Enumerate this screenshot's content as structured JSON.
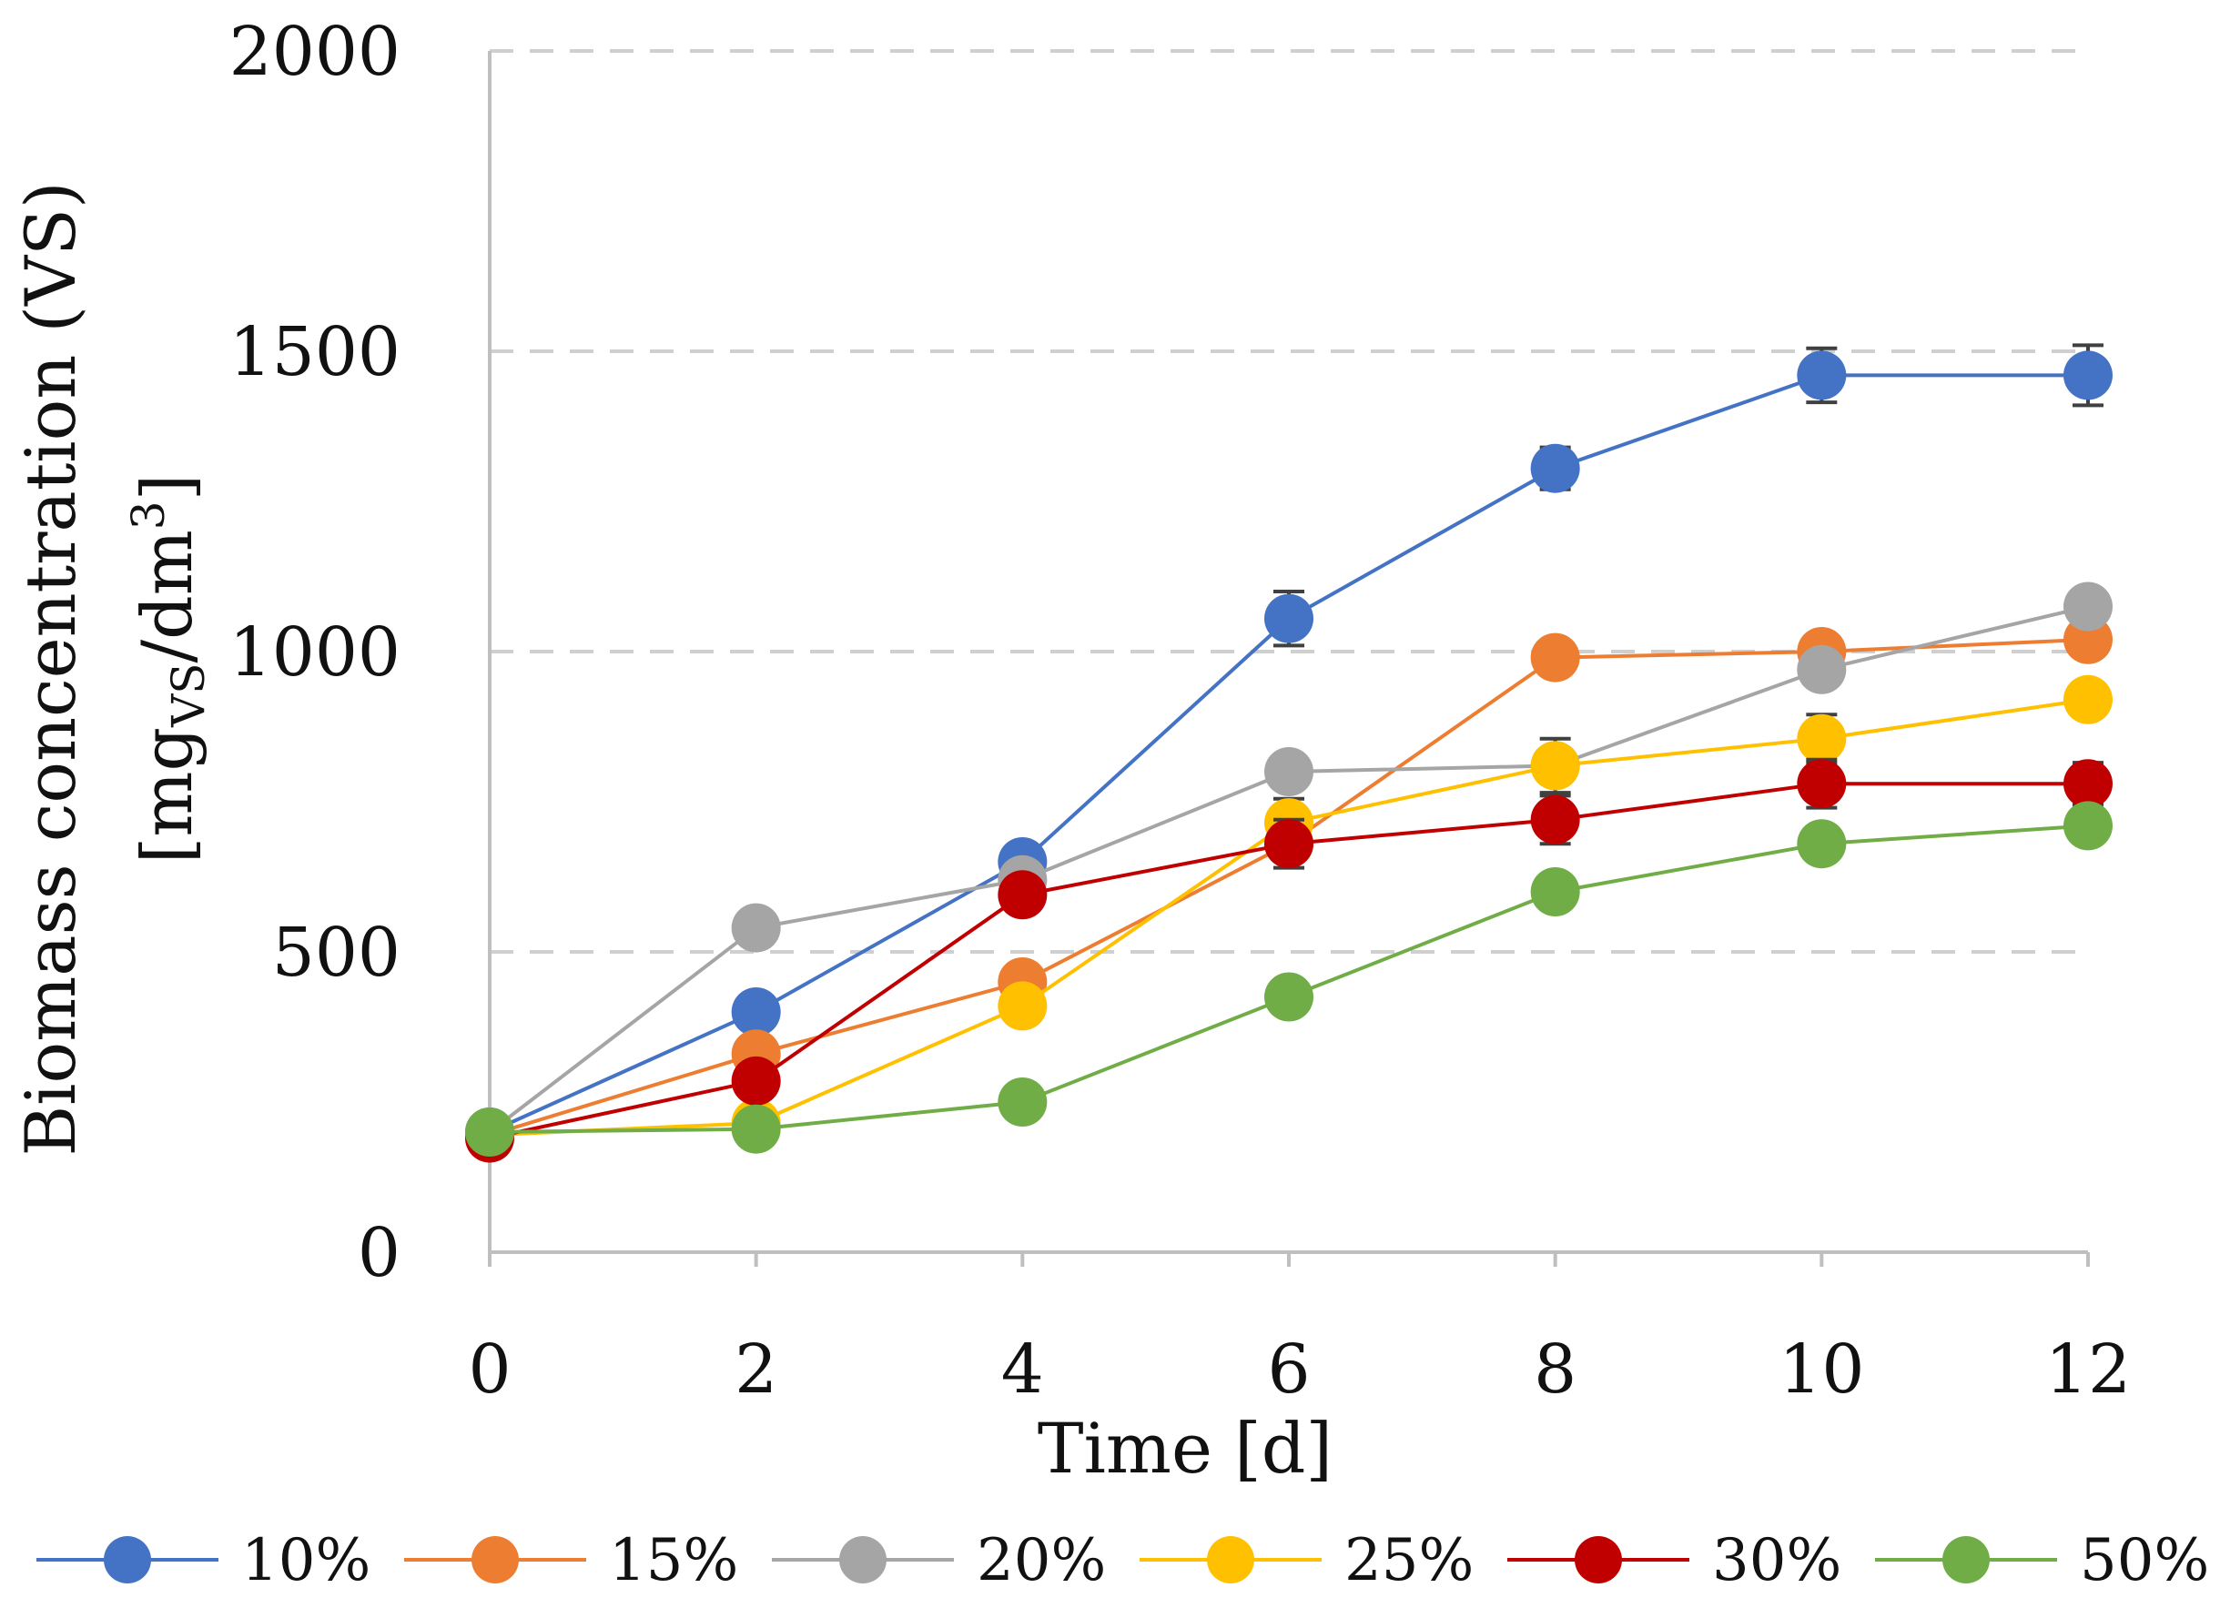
{
  "chart_data": {
    "type": "line",
    "title": "",
    "xlabel": "Time [d]",
    "ylabel": {
      "line1": "Biomass concentration (VS)",
      "line2_prefix": "[mg",
      "line2_sub": "VS",
      "line2_mid": "/dm",
      "line2_sup": "3",
      "line2_suffix": "]"
    },
    "x": [
      0,
      2,
      4,
      6,
      8,
      10,
      12
    ],
    "xticks": [
      "0",
      "2",
      "4",
      "6",
      "8",
      "10",
      "12"
    ],
    "ylim": [
      0,
      2000
    ],
    "yticks": [
      "0",
      "500",
      "1000",
      "1500",
      "2000"
    ],
    "ytick_values": [
      0,
      500,
      1000,
      1500,
      2000
    ],
    "grid": "horizontal-dashed",
    "legend_position": "bottom",
    "series": [
      {
        "name": "10%",
        "color": "#4472C4",
        "values": [
          200,
          400,
          650,
          1055,
          1305,
          1460,
          1460
        ],
        "errors": [
          0,
          0,
          0,
          45,
          35,
          45,
          50
        ]
      },
      {
        "name": "15%",
        "color": "#ED7D31",
        "values": [
          195,
          330,
          450,
          680,
          990,
          1000,
          1020
        ],
        "errors": [
          0,
          0,
          0,
          0,
          0,
          0,
          0
        ]
      },
      {
        "name": "20%",
        "color": "#A5A5A5",
        "values": [
          200,
          540,
          620,
          800,
          810,
          970,
          1075
        ],
        "errors": [
          0,
          0,
          0,
          0,
          45,
          0,
          0
        ]
      },
      {
        "name": "25%",
        "color": "#FFC000",
        "values": [
          195,
          215,
          410,
          715,
          810,
          855,
          920
        ],
        "errors": [
          0,
          0,
          0,
          40,
          0,
          40,
          0
        ]
      },
      {
        "name": "30%",
        "color": "#C00000",
        "values": [
          190,
          285,
          595,
          680,
          720,
          780,
          780
        ],
        "errors": [
          0,
          0,
          0,
          40,
          40,
          40,
          35
        ]
      },
      {
        "name": "50%",
        "color": "#70AD47",
        "values": [
          200,
          205,
          250,
          425,
          600,
          680,
          710
        ],
        "errors": [
          0,
          0,
          0,
          0,
          0,
          0,
          0
        ]
      }
    ]
  }
}
